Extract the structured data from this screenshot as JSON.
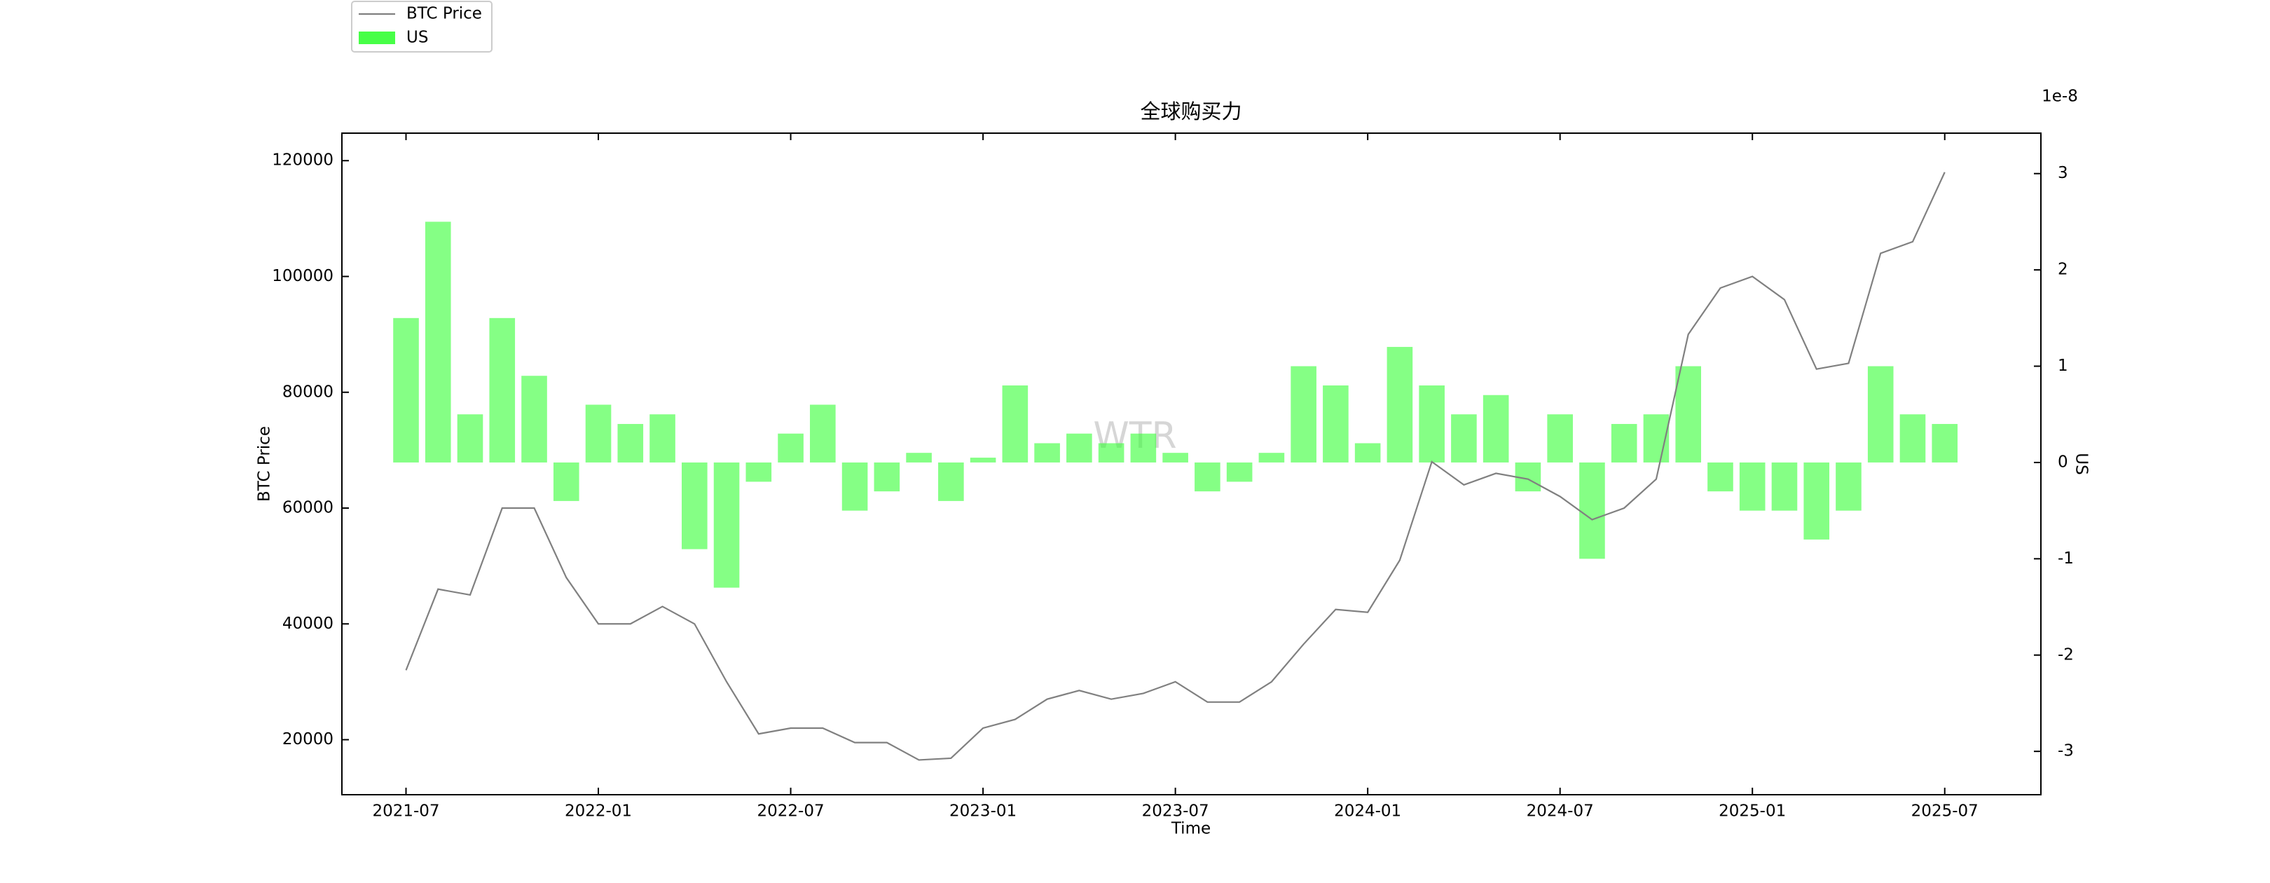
{
  "chart_data": {
    "type": "combo",
    "title": "全球购买力",
    "x_label": "Time",
    "y_label": "BTC Price",
    "y2_label": "US",
    "y2_offset_label": "1e-8",
    "watermark": "WTR",
    "legend_loc": "top-left",
    "x": [
      "2021-07",
      "2021-08",
      "2021-09",
      "2021-10",
      "2021-11",
      "2021-12",
      "2022-01",
      "2022-02",
      "2022-03",
      "2022-04",
      "2022-05",
      "2022-06",
      "2022-07",
      "2022-08",
      "2022-09",
      "2022-10",
      "2022-11",
      "2022-12",
      "2023-01",
      "2023-02",
      "2023-03",
      "2023-04",
      "2023-05",
      "2023-06",
      "2023-07",
      "2023-08",
      "2023-09",
      "2023-10",
      "2023-11",
      "2023-12",
      "2024-01",
      "2024-02",
      "2024-03",
      "2024-04",
      "2024-05",
      "2024-06",
      "2024-07",
      "2024-08",
      "2024-09",
      "2024-10",
      "2024-11",
      "2024-12",
      "2025-01",
      "2025-02",
      "2025-03",
      "2025-04",
      "2025-05",
      "2025-06",
      "2025-07"
    ],
    "series": [
      {
        "name": "BTC Price",
        "type": "line",
        "axis": "y",
        "color": "#808080",
        "values": [
          32000,
          46000,
          45000,
          60000,
          60000,
          48000,
          40000,
          40000,
          43000,
          40000,
          30000,
          21000,
          22000,
          22000,
          19500,
          19500,
          16500,
          16800,
          22000,
          23500,
          27000,
          28500,
          27000,
          28000,
          30000,
          26500,
          26500,
          30000,
          36500,
          42500,
          42000,
          51000,
          68000,
          64000,
          66000,
          65000,
          62000,
          58000,
          60000,
          65000,
          90000,
          98000,
          100000,
          96000,
          84000,
          85000,
          104000,
          106000,
          118000
        ]
      },
      {
        "name": "US",
        "type": "bar",
        "axis": "y2",
        "color": "#33ff33",
        "values": [
          1.5,
          2.5,
          0.5,
          1.5,
          0.9,
          -0.4,
          0.6,
          0.4,
          0.5,
          -0.9,
          -1.3,
          -0.2,
          0.3,
          0.6,
          -0.5,
          -0.3,
          0.1,
          -0.4,
          0.05,
          0.8,
          0.2,
          0.3,
          0.2,
          0.3,
          0.1,
          -0.3,
          -0.2,
          0.1,
          1.0,
          0.8,
          0.2,
          1.2,
          0.8,
          0.5,
          0.7,
          -0.3,
          0.5,
          -1.0,
          0.4,
          0.5,
          1.0,
          -0.3,
          -0.5,
          -0.5,
          -0.8,
          -0.5,
          1.0,
          0.5,
          0.4
        ]
      }
    ],
    "xlim": [
      "2021-05",
      "2025-10"
    ],
    "xticks": [
      "2021-07",
      "2022-01",
      "2022-07",
      "2023-01",
      "2023-07",
      "2024-01",
      "2024-07",
      "2025-01",
      "2025-07"
    ],
    "ylim": [
      10500,
      124750
    ],
    "yticks": [
      20000,
      40000,
      60000,
      80000,
      100000,
      120000
    ],
    "y2lim": [
      -3.45,
      3.42
    ],
    "y2ticks": [
      -3,
      -2,
      -1,
      0,
      1,
      2,
      3
    ],
    "grid": false
  }
}
